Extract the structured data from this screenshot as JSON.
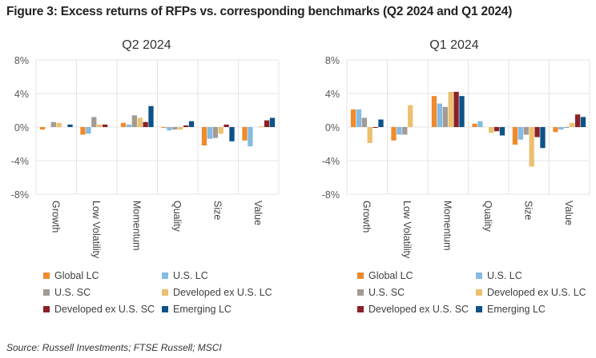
{
  "figure_title": "Figure 3: Excess returns of RFPs vs. corresponding benchmarks (Q2 2024 and Q1 2024)",
  "source": "Source: Russell Investments; FTSE Russell; MSCI",
  "series_colors": {
    "Global LC": "#F08A2C",
    "U.S. LC": "#84BBE2",
    "U.S. SC": "#A39B93",
    "Developed ex U.S. LC": "#EBC06F",
    "Developed ex U.S. SC": "#8B2128",
    "Emerging LC": "#0D5289"
  },
  "legend": [
    {
      "label": "Global LC",
      "color": "#F08A2C"
    },
    {
      "label": "U.S. LC",
      "color": "#84BBE2"
    },
    {
      "label": "U.S. SC",
      "color": "#A39B93"
    },
    {
      "label": "Developed ex U.S. LC",
      "color": "#EBC06F"
    },
    {
      "label": "Developed ex U.S. SC",
      "color": "#8B2128"
    },
    {
      "label": "Emerging LC",
      "color": "#0D5289"
    }
  ],
  "chart_data": [
    {
      "type": "bar",
      "title": "Q2 2024",
      "xlabel": "",
      "ylabel": "",
      "ylim": [
        -8,
        8
      ],
      "yticks": [
        8,
        4,
        0,
        -4,
        -8
      ],
      "ytick_labels": [
        "8%",
        "4%",
        "0%",
        "-4%",
        "-8%"
      ],
      "grid": true,
      "legend_position": "bottom",
      "categories": [
        "Growth",
        "Low Volatility",
        "Momentum",
        "Quality",
        "Size",
        "Value"
      ],
      "series": [
        {
          "name": "Global LC",
          "values": [
            -0.3,
            -0.9,
            0.5,
            -0.1,
            -2.2,
            -1.6
          ]
        },
        {
          "name": "U.S. LC",
          "values": [
            0.0,
            -0.8,
            0.3,
            -0.4,
            -1.4,
            -2.3
          ]
        },
        {
          "name": "U.S. SC",
          "values": [
            0.6,
            1.2,
            1.4,
            -0.3,
            -1.3,
            0.0
          ]
        },
        {
          "name": "Developed ex U.S. LC",
          "values": [
            0.5,
            0.3,
            1.1,
            -0.3,
            -0.8,
            0.1
          ]
        },
        {
          "name": "Developed ex U.S. SC",
          "values": [
            0.0,
            0.3,
            0.6,
            0.2,
            0.3,
            0.8
          ]
        },
        {
          "name": "Emerging LC",
          "values": [
            0.3,
            0.0,
            2.5,
            0.7,
            -1.7,
            1.1
          ]
        }
      ]
    },
    {
      "type": "bar",
      "title": "Q1 2024",
      "xlabel": "",
      "ylabel": "",
      "ylim": [
        -8,
        8
      ],
      "yticks": [
        8,
        4,
        0,
        -4,
        -8
      ],
      "ytick_labels": [
        "8%",
        "4%",
        "0%",
        "-4%",
        "-8%"
      ],
      "grid": true,
      "legend_position": "bottom",
      "categories": [
        "Growth",
        "Low Volatility",
        "Momentum",
        "Quality",
        "Size",
        "Value"
      ],
      "series": [
        {
          "name": "Global LC",
          "values": [
            2.1,
            -1.6,
            3.7,
            0.4,
            -2.1,
            -0.6
          ]
        },
        {
          "name": "U.S. LC",
          "values": [
            2.1,
            -0.9,
            2.8,
            0.7,
            -1.5,
            -0.3
          ]
        },
        {
          "name": "U.S. SC",
          "values": [
            1.1,
            -0.9,
            2.4,
            0.0,
            -0.9,
            -0.1
          ]
        },
        {
          "name": "Developed ex U.S. LC",
          "values": [
            -1.9,
            2.6,
            4.2,
            -0.7,
            -4.7,
            0.5
          ]
        },
        {
          "name": "Developed ex U.S. SC",
          "values": [
            -0.1,
            0.0,
            4.2,
            -0.5,
            -1.2,
            1.5
          ]
        },
        {
          "name": "Emerging LC",
          "values": [
            0.9,
            0.0,
            3.7,
            -1.0,
            -2.5,
            1.2
          ]
        }
      ]
    }
  ]
}
